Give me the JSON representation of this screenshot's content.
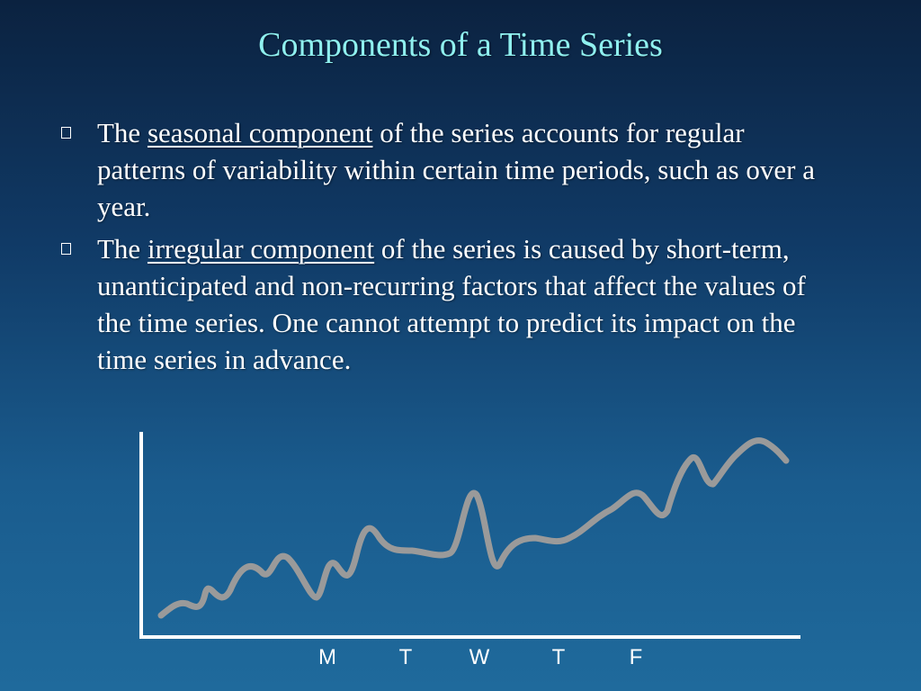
{
  "slide": {
    "title": "Components of a Time Series",
    "bullets": [
      {
        "before": "The ",
        "term": "seasonal component",
        "after": " of the series accounts for regular patterns of variability within certain time periods, such as over a year."
      },
      {
        "before": "The ",
        "term": "irregular component",
        "after": " of the series is caused by short-term, unanticipated and non-recurring factors that affect the values of the time series.  One cannot attempt to predict its impact on the time series in advance."
      }
    ]
  },
  "chart_data": {
    "type": "line",
    "x_tick_labels": [
      "M",
      "T",
      "W",
      "T",
      "F"
    ],
    "line_color": "#9a9a9a",
    "axis_color": "#ffffff"
  }
}
